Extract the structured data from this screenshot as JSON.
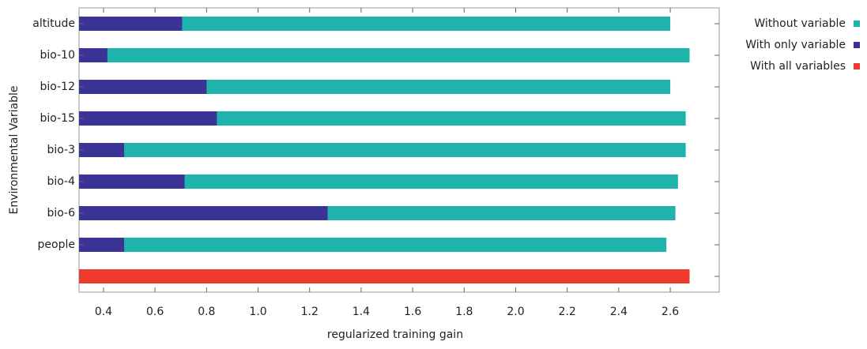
{
  "chart_data": {
    "type": "bar",
    "orientation": "horizontal",
    "xlabel": "regularized training gain",
    "ylabel": "Environmental Variable",
    "categories": [
      "altitude",
      "bio-10",
      "bio-12",
      "bio-15",
      "bio-3",
      "bio-4",
      "bio-6",
      "people",
      null
    ],
    "series": [
      {
        "name": "Without variable",
        "color": "#1fb3ad",
        "values": [
          2.6,
          2.675,
          2.6,
          2.66,
          2.66,
          2.63,
          2.62,
          2.585,
          null
        ]
      },
      {
        "name": "With only variable",
        "color": "#3b3396",
        "values": [
          0.705,
          0.415,
          0.8,
          0.84,
          0.48,
          0.715,
          1.27,
          0.48,
          null
        ]
      },
      {
        "name": "With all variables",
        "color": "#ee3b2b",
        "values": [
          null,
          null,
          null,
          null,
          null,
          null,
          null,
          null,
          2.675
        ]
      }
    ],
    "xlim": [
      0.305,
      2.79
    ],
    "xticks": [
      0.4,
      0.6,
      0.8,
      {
        "value": 1.0,
        "label": "1.0"
      },
      1.2,
      1.4,
      1.6,
      1.8,
      {
        "value": 2.0,
        "label": "2.0"
      },
      2.2,
      2.4,
      2.6
    ],
    "legend": "upper right"
  }
}
